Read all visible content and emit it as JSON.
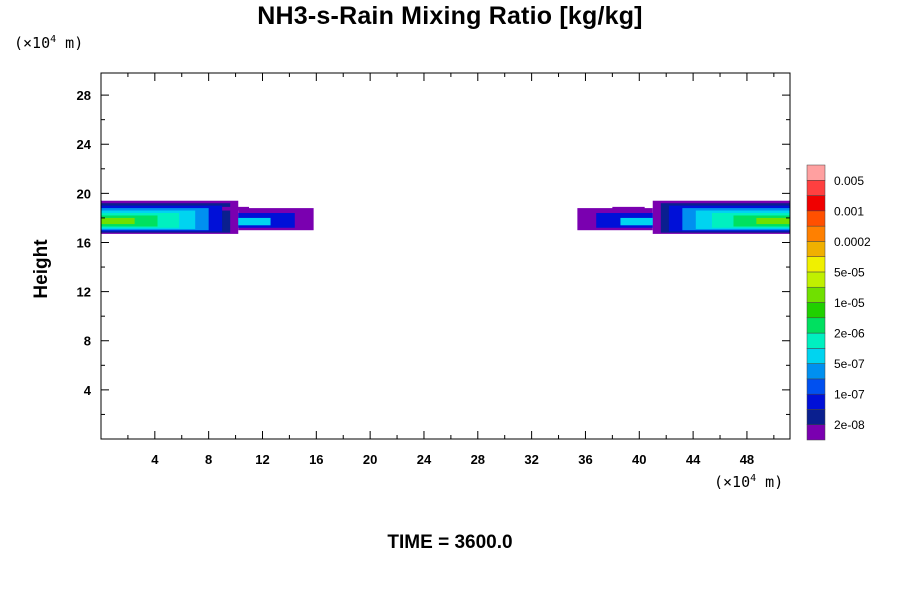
{
  "chart_data": {
    "type": "heatmap",
    "title": "NH3-s-Rain Mixing Ratio [kg/kg]",
    "ylabel": "Height",
    "xlabel": "",
    "x_unit": {
      "prefix": "(×10",
      "exp": "4",
      "suffix": " m)"
    },
    "y_unit": {
      "prefix": "(×10",
      "exp": "4",
      "suffix": " m)"
    },
    "footer": "TIME = 3600.0",
    "xlim": [
      0,
      51.2
    ],
    "ylim": [
      0,
      29.8
    ],
    "x_ticks": [
      "4",
      "8",
      "12",
      "16",
      "20",
      "24",
      "28",
      "32",
      "36",
      "40",
      "44",
      "48"
    ],
    "y_ticks": [
      "4",
      "8",
      "12",
      "16",
      "20",
      "24",
      "28"
    ],
    "colorbar": {
      "colors": [
        "#7a00b0",
        "#0a1f8f",
        "#0010d8",
        "#0050f0",
        "#0090f0",
        "#00d4f0",
        "#00f0c0",
        "#00e060",
        "#20d000",
        "#70e000",
        "#c0f000",
        "#f0f000",
        "#f0b000",
        "#ff8000",
        "#ff5000",
        "#f00000",
        "#ff4040",
        "#ffa0a0"
      ],
      "labels": [
        "2e-08",
        "1e-07",
        "5e-07",
        "2e-06",
        "1e-05",
        "5e-05",
        "0.0002",
        "0.001",
        "0.005"
      ]
    },
    "regions": [
      {
        "name": "left",
        "bands": [
          {
            "level": 0,
            "y": [
              16.7,
              19.4
            ],
            "x": [
              0,
              10.2
            ]
          },
          {
            "level": 1,
            "y": [
              16.8,
              19.2
            ],
            "x": [
              0,
              9.6
            ]
          },
          {
            "level": 2,
            "y": [
              16.9,
              19.0
            ],
            "x": [
              0,
              9.0
            ]
          },
          {
            "level": 4,
            "y": [
              17.0,
              18.8
            ],
            "x": [
              0,
              8.0
            ]
          },
          {
            "level": 5,
            "y": [
              17.1,
              18.6
            ],
            "x": [
              0,
              7.0
            ]
          },
          {
            "level": 6,
            "y": [
              17.2,
              18.4
            ],
            "x": [
              0,
              5.8
            ]
          },
          {
            "level": 7,
            "y": [
              17.3,
              18.2
            ],
            "x": [
              0,
              4.2
            ]
          },
          {
            "level": 9,
            "y": [
              17.5,
              18.0
            ],
            "x": [
              0,
              2.5
            ]
          },
          {
            "level": 0,
            "y": [
              17.0,
              18.8
            ],
            "x": [
              10.2,
              15.8
            ]
          },
          {
            "level": 2,
            "y": [
              17.2,
              18.4
            ],
            "x": [
              10.2,
              14.4
            ]
          },
          {
            "level": 5,
            "y": [
              17.4,
              18.0
            ],
            "x": [
              10.2,
              12.6
            ]
          },
          {
            "level": 0,
            "y": [
              18.6,
              18.9
            ],
            "x": [
              9.0,
              11.0
            ]
          }
        ]
      },
      {
        "name": "right",
        "bands": [
          {
            "level": 0,
            "y": [
              16.7,
              19.4
            ],
            "x": [
              41.0,
              51.2
            ]
          },
          {
            "level": 1,
            "y": [
              16.8,
              19.2
            ],
            "x": [
              41.6,
              51.2
            ]
          },
          {
            "level": 2,
            "y": [
              16.9,
              19.0
            ],
            "x": [
              42.2,
              51.2
            ]
          },
          {
            "level": 4,
            "y": [
              17.0,
              18.8
            ],
            "x": [
              43.2,
              51.2
            ]
          },
          {
            "level": 5,
            "y": [
              17.1,
              18.6
            ],
            "x": [
              44.2,
              51.2
            ]
          },
          {
            "level": 6,
            "y": [
              17.2,
              18.4
            ],
            "x": [
              45.4,
              51.2
            ]
          },
          {
            "level": 7,
            "y": [
              17.3,
              18.2
            ],
            "x": [
              47.0,
              51.2
            ]
          },
          {
            "level": 9,
            "y": [
              17.5,
              18.0
            ],
            "x": [
              48.7,
              51.2
            ]
          },
          {
            "level": 0,
            "y": [
              17.0,
              18.8
            ],
            "x": [
              35.4,
              41.0
            ]
          },
          {
            "level": 2,
            "y": [
              17.2,
              18.4
            ],
            "x": [
              36.8,
              41.0
            ]
          },
          {
            "level": 5,
            "y": [
              17.4,
              18.0
            ],
            "x": [
              38.6,
              41.0
            ]
          },
          {
            "level": 0,
            "y": [
              18.6,
              18.9
            ],
            "x": [
              38.0,
              40.4
            ]
          }
        ]
      }
    ]
  }
}
